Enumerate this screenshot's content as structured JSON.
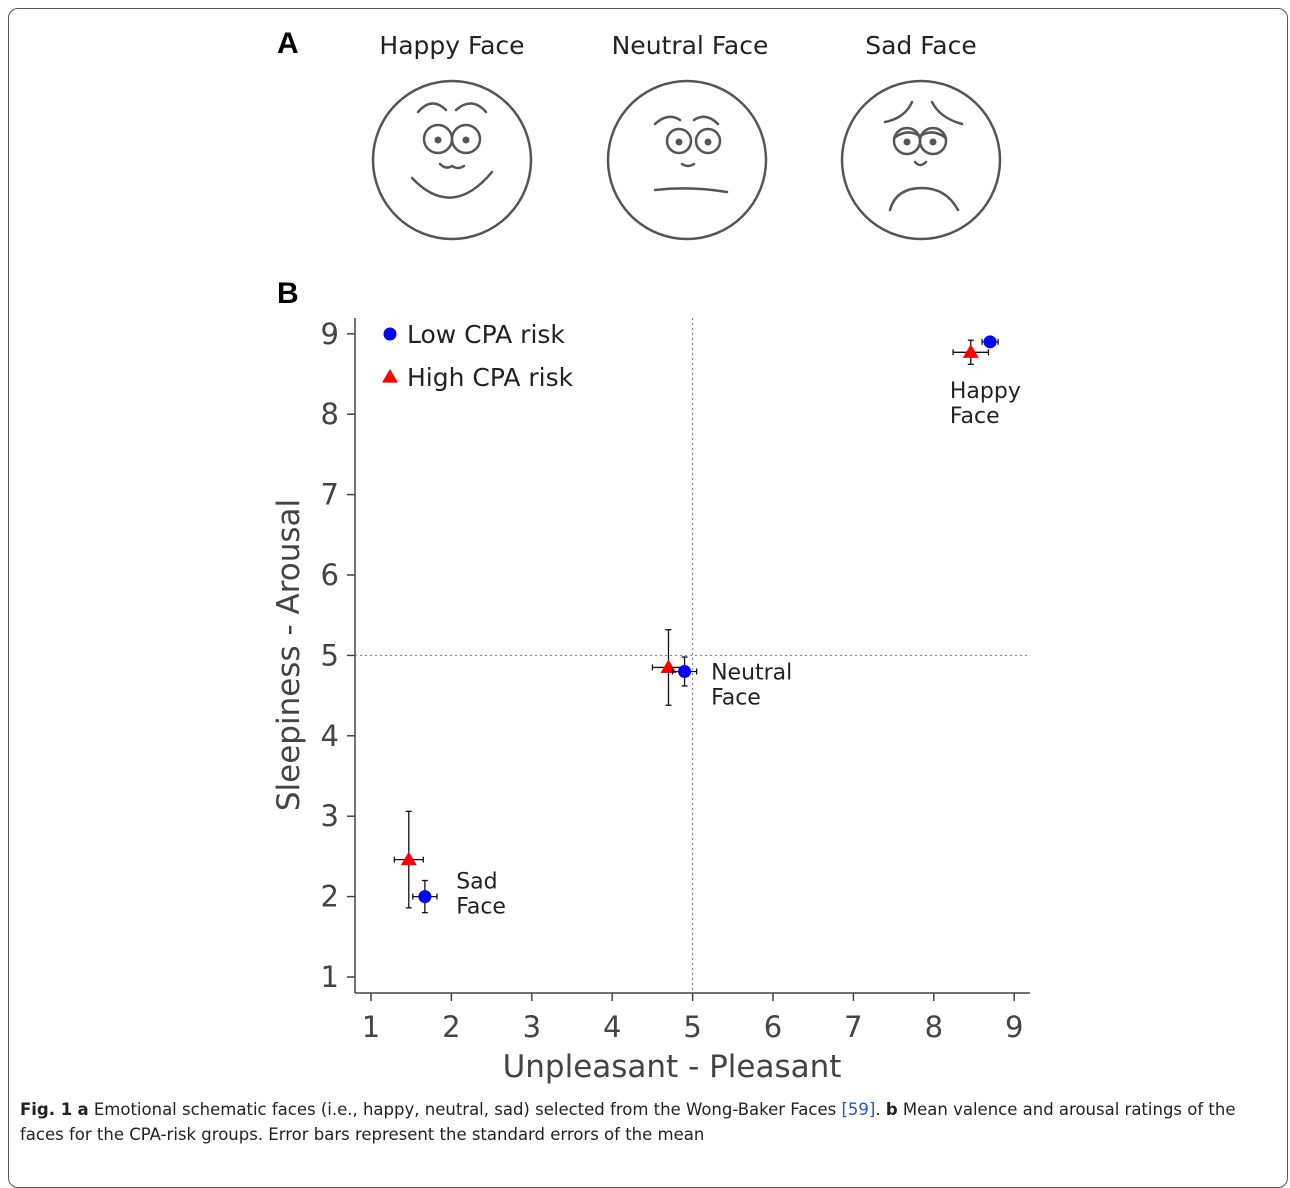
{
  "panel_a": {
    "label": "A",
    "faces": [
      {
        "title": "Happy Face",
        "icon": "happy-face-icon"
      },
      {
        "title": "Neutral Face",
        "icon": "neutral-face-icon"
      },
      {
        "title": "Sad Face",
        "icon": "sad-face-icon"
      }
    ]
  },
  "panel_b": {
    "label": "B"
  },
  "chart_data": {
    "type": "scatter",
    "xlabel": "Unpleasant - Pleasant",
    "ylabel": "Sleepiness - Arousal",
    "xlim": [
      1,
      9
    ],
    "ylim": [
      1,
      9
    ],
    "xticks": [
      "1",
      "2",
      "3",
      "4",
      "5",
      "6",
      "7",
      "8",
      "9"
    ],
    "yticks": [
      "1",
      "2",
      "3",
      "4",
      "5",
      "6",
      "7",
      "8",
      "9"
    ],
    "reference_lines": {
      "x": 5,
      "y": 5,
      "style": "dotted"
    },
    "legend_position": "top-left",
    "series": [
      {
        "name": "Low CPA risk",
        "marker": "circle",
        "color": "#0000ff",
        "points": [
          {
            "x": 8.7,
            "y": 8.9,
            "xerr": 0.1,
            "yerr": 0.05
          },
          {
            "x": 4.9,
            "y": 4.8,
            "xerr": 0.15,
            "yerr": 0.18
          },
          {
            "x": 1.67,
            "y": 2.0,
            "xerr": 0.15,
            "yerr": 0.2
          }
        ]
      },
      {
        "name": "High CPA risk",
        "marker": "triangle",
        "color": "#ff0000",
        "points": [
          {
            "x": 8.46,
            "y": 8.77,
            "xerr": 0.22,
            "yerr": 0.15
          },
          {
            "x": 4.7,
            "y": 4.85,
            "xerr": 0.2,
            "yerr": 0.47
          },
          {
            "x": 1.47,
            "y": 2.46,
            "xerr": 0.18,
            "yerr": 0.6
          }
        ]
      }
    ],
    "annotations": [
      {
        "line1": "Happy",
        "line2": "Face",
        "x": 8.2,
        "y": 8.2
      },
      {
        "line1": "Neutral",
        "line2": "Face",
        "x": 5.23,
        "y": 4.7
      },
      {
        "line1": "Sad",
        "line2": "Face",
        "x": 2.06,
        "y": 2.1
      }
    ]
  },
  "caption": {
    "fig_label": "Fig. 1",
    "part_a_label": "a",
    "part_a_text": " Emotional schematic faces (i.e., happy, neutral, sad) selected from the Wong-Baker Faces ",
    "ref": "[59]",
    "part_b_pre": ". ",
    "part_b_label": "b",
    "part_b_text": " Mean valence and arousal ratings of the faces for the CPA-risk groups. Error bars represent the standard errors of the mean"
  }
}
